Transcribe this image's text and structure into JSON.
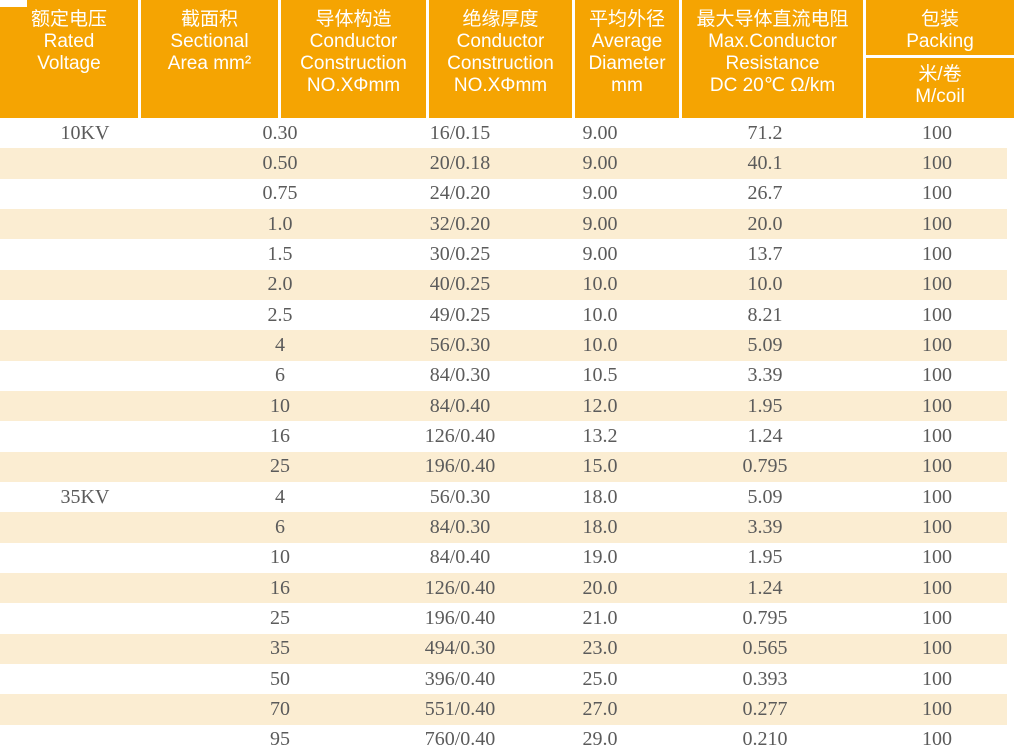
{
  "colors": {
    "header_orange": "#f5a402",
    "stripe_cream": "#fbedd2",
    "header_text": "#ffffff",
    "data_text": "#5b5b5b"
  },
  "table": {
    "header": {
      "columns": [
        {
          "id": "rated-voltage",
          "lines": [
            "额定电压",
            "Rated",
            "Voltage"
          ]
        },
        {
          "id": "sectional-area",
          "lines": [
            "截面积",
            "Sectional",
            "Area mm²"
          ]
        },
        {
          "id": "conductor-construction",
          "lines": [
            "导体构造",
            "Conductor",
            "Construction",
            "NO.XΦmm"
          ]
        },
        {
          "id": "insulation-thickness",
          "lines": [
            "绝缘厚度",
            "Conductor",
            "Construction",
            "NO.XΦmm"
          ]
        },
        {
          "id": "average-diameter",
          "lines": [
            "平均外径",
            "Average",
            "Diameter",
            "mm"
          ]
        },
        {
          "id": "max-conductor-resistance",
          "lines": [
            "最大导体直流电阻",
            "Max.Conductor",
            "Resistance",
            "DC 20℃ Ω/km"
          ]
        },
        {
          "id": "packing",
          "lines": [
            "包装",
            "Packing"
          ],
          "sub_lines": [
            "米/卷",
            "M/coil"
          ]
        }
      ]
    },
    "rows": [
      {
        "voltage": "10KV",
        "area": "0.30",
        "construction": "16/0.15",
        "diameter": "9.00",
        "resistance": "71.2",
        "packing": "100"
      },
      {
        "voltage": "",
        "area": "0.50",
        "construction": "20/0.18",
        "diameter": "9.00",
        "resistance": "40.1",
        "packing": "100"
      },
      {
        "voltage": "",
        "area": "0.75",
        "construction": "24/0.20",
        "diameter": "9.00",
        "resistance": "26.7",
        "packing": "100"
      },
      {
        "voltage": "",
        "area": "1.0",
        "construction": "32/0.20",
        "diameter": "9.00",
        "resistance": "20.0",
        "packing": "100"
      },
      {
        "voltage": "",
        "area": "1.5",
        "construction": "30/0.25",
        "diameter": "9.00",
        "resistance": "13.7",
        "packing": "100"
      },
      {
        "voltage": "",
        "area": "2.0",
        "construction": "40/0.25",
        "diameter": "10.0",
        "resistance": "10.0",
        "packing": "100"
      },
      {
        "voltage": "",
        "area": "2.5",
        "construction": "49/0.25",
        "diameter": "10.0",
        "resistance": "8.21",
        "packing": "100"
      },
      {
        "voltage": "",
        "area": "4",
        "construction": "56/0.30",
        "diameter": "10.0",
        "resistance": "5.09",
        "packing": "100"
      },
      {
        "voltage": "",
        "area": "6",
        "construction": "84/0.30",
        "diameter": "10.5",
        "resistance": "3.39",
        "packing": "100"
      },
      {
        "voltage": "",
        "area": "10",
        "construction": "84/0.40",
        "diameter": "12.0",
        "resistance": "1.95",
        "packing": "100"
      },
      {
        "voltage": "",
        "area": "16",
        "construction": "126/0.40",
        "diameter": "13.2",
        "resistance": "1.24",
        "packing": "100"
      },
      {
        "voltage": "",
        "area": "25",
        "construction": "196/0.40",
        "diameter": "15.0",
        "resistance": "0.795",
        "packing": "100"
      },
      {
        "voltage": "35KV",
        "area": "4",
        "construction": "56/0.30",
        "diameter": "18.0",
        "resistance": "5.09",
        "packing": "100"
      },
      {
        "voltage": "",
        "area": "6",
        "construction": "84/0.30",
        "diameter": "18.0",
        "resistance": "3.39",
        "packing": "100"
      },
      {
        "voltage": "",
        "area": "10",
        "construction": "84/0.40",
        "diameter": "19.0",
        "resistance": "1.95",
        "packing": "100"
      },
      {
        "voltage": "",
        "area": "16",
        "construction": "126/0.40",
        "diameter": "20.0",
        "resistance": "1.24",
        "packing": "100"
      },
      {
        "voltage": "",
        "area": "25",
        "construction": "196/0.40",
        "diameter": "21.0",
        "resistance": "0.795",
        "packing": "100"
      },
      {
        "voltage": "",
        "area": "35",
        "construction": "494/0.30",
        "diameter": "23.0",
        "resistance": "0.565",
        "packing": "100"
      },
      {
        "voltage": "",
        "area": "50",
        "construction": "396/0.40",
        "diameter": "25.0",
        "resistance": "0.393",
        "packing": "100"
      },
      {
        "voltage": "",
        "area": "70",
        "construction": "551/0.40",
        "diameter": "27.0",
        "resistance": "0.277",
        "packing": "100"
      },
      {
        "voltage": "",
        "area": "95",
        "construction": "760/0.40",
        "diameter": "29.0",
        "resistance": "0.210",
        "packing": "100"
      }
    ]
  }
}
